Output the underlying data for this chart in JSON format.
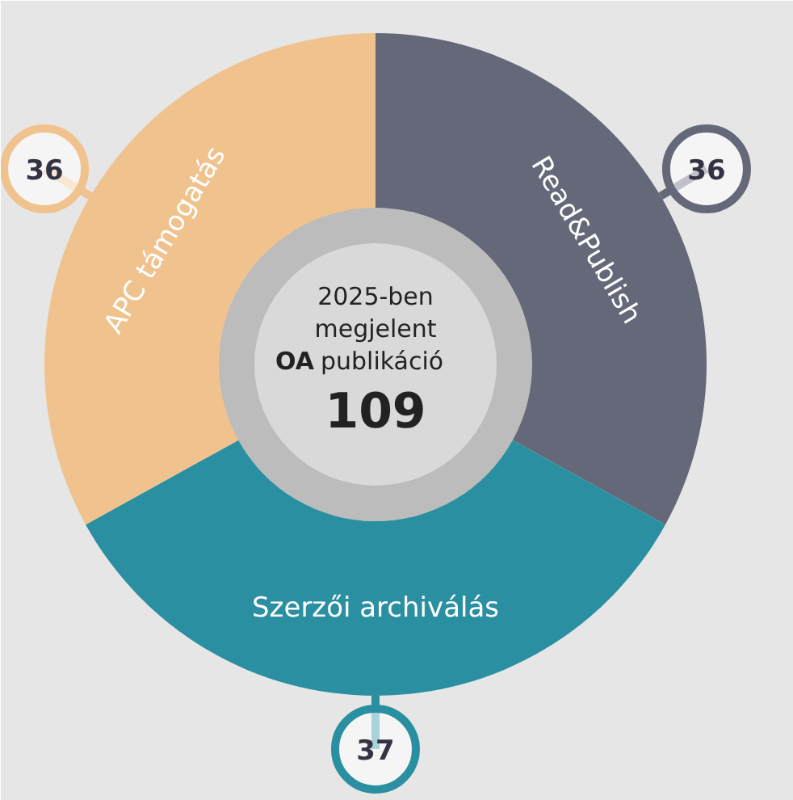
{
  "chart_data": {
    "type": "donut",
    "title": "2025-ben megjelent OA publikáció",
    "categories": [
      "Read&Publish",
      "Szerzői archiválás",
      "APC támogatás"
    ],
    "values": [
      36,
      37,
      36
    ],
    "colors": [
      "#646878",
      "#2a8fa0",
      "#f0c38e"
    ],
    "data_labels": true,
    "annotations": [
      "109"
    ]
  }
}
